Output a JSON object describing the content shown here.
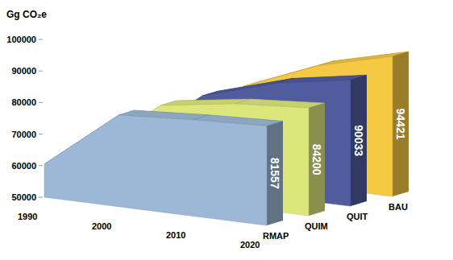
{
  "chart_data": {
    "type": "area",
    "y_label": "Gg CO₂e",
    "categories": [
      "1990",
      "2000",
      "2010",
      "2020"
    ],
    "series": [
      {
        "name": "RMAP",
        "color": "#9cb8d6",
        "values": [
          60500,
          79000,
          80500,
          81557
        ]
      },
      {
        "name": "QUIM",
        "color": "#dde67a",
        "values": [
          60500,
          79000,
          82500,
          84200
        ]
      },
      {
        "name": "QUIT",
        "color": "#505c9e",
        "values": [
          60500,
          79000,
          86000,
          90033
        ]
      },
      {
        "name": "BAU",
        "color": "#f6c944",
        "values": [
          60500,
          79000,
          88500,
          94421
        ]
      }
    ],
    "ylim": [
      50000,
      100000
    ],
    "yticks": [
      50000,
      60000,
      70000,
      80000,
      90000,
      100000
    ],
    "grid": false,
    "data_labels": true
  }
}
